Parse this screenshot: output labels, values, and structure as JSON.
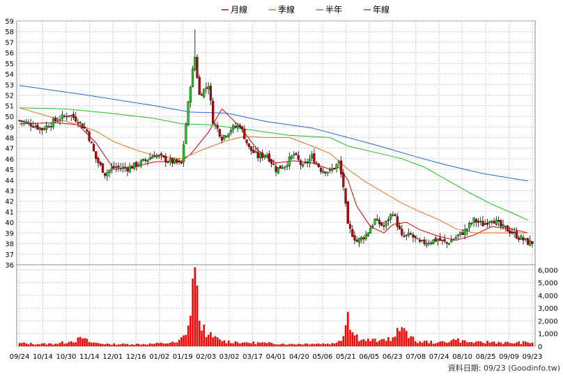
{
  "legend": [
    {
      "label": "月線",
      "color": "#cc0000"
    },
    {
      "label": "季線",
      "color": "#e07020"
    },
    {
      "label": "半年",
      "color": "#22bb22"
    },
    {
      "label": "年線",
      "color": "#2266cc"
    }
  ],
  "source_note": "資料日期: 09/23  (Goodinfo.tw)",
  "chart_data": [
    {
      "type": "candlestick",
      "title": "",
      "x_labels": [
        "09/24",
        "10/14",
        "10/30",
        "11/14",
        "12/01",
        "12/16",
        "01/02",
        "01/19",
        "02/03",
        "03/02",
        "03/17",
        "04/01",
        "04/20",
        "05/06",
        "05/21",
        "06/05",
        "06/23",
        "07/08",
        "07/24",
        "08/10",
        "08/25",
        "09/09",
        "09/23"
      ],
      "y_ticks": [
        36,
        37,
        38,
        39,
        40,
        41,
        42,
        43,
        44,
        45,
        46,
        47,
        48,
        49,
        50,
        51,
        52,
        53,
        54,
        55,
        56,
        57,
        58,
        59
      ],
      "ylim": [
        36,
        59
      ],
      "grid": true,
      "up_color": "#22cc22",
      "down_color": "#cc0000",
      "close_series": [
        {
          "i": 0,
          "v": 49.6
        },
        {
          "i": 6,
          "v": 49.2
        },
        {
          "i": 10,
          "v": 48.8
        },
        {
          "i": 16,
          "v": 49.6
        },
        {
          "i": 22,
          "v": 50.2
        },
        {
          "i": 26,
          "v": 49.6
        },
        {
          "i": 30,
          "v": 48.6
        },
        {
          "i": 34,
          "v": 46.0
        },
        {
          "i": 38,
          "v": 44.6
        },
        {
          "i": 42,
          "v": 45.2
        },
        {
          "i": 48,
          "v": 45.1
        },
        {
          "i": 54,
          "v": 45.6
        },
        {
          "i": 60,
          "v": 46.4
        },
        {
          "i": 66,
          "v": 45.8
        },
        {
          "i": 72,
          "v": 45.5
        },
        {
          "i": 76,
          "v": 53.0
        },
        {
          "i": 78,
          "v": 55.6
        },
        {
          "i": 80,
          "v": 52.0
        },
        {
          "i": 84,
          "v": 53.0
        },
        {
          "i": 86,
          "v": 49.6
        },
        {
          "i": 90,
          "v": 48.0
        },
        {
          "i": 94,
          "v": 48.8
        },
        {
          "i": 98,
          "v": 49.2
        },
        {
          "i": 102,
          "v": 47.0
        },
        {
          "i": 106,
          "v": 46.2
        },
        {
          "i": 110,
          "v": 46.4
        },
        {
          "i": 114,
          "v": 45.0
        },
        {
          "i": 118,
          "v": 45.4
        },
        {
          "i": 122,
          "v": 46.4
        },
        {
          "i": 126,
          "v": 45.2
        },
        {
          "i": 130,
          "v": 46.2
        },
        {
          "i": 134,
          "v": 45.0
        },
        {
          "i": 138,
          "v": 44.8
        },
        {
          "i": 142,
          "v": 45.6
        },
        {
          "i": 144,
          "v": 43.4
        },
        {
          "i": 146,
          "v": 39.6
        },
        {
          "i": 150,
          "v": 38.2
        },
        {
          "i": 154,
          "v": 38.8
        },
        {
          "i": 158,
          "v": 40.2
        },
        {
          "i": 162,
          "v": 39.6
        },
        {
          "i": 166,
          "v": 41.0
        },
        {
          "i": 170,
          "v": 38.6
        },
        {
          "i": 174,
          "v": 38.8
        },
        {
          "i": 178,
          "v": 38.0
        },
        {
          "i": 182,
          "v": 38.2
        },
        {
          "i": 186,
          "v": 38.4
        },
        {
          "i": 190,
          "v": 38.0
        },
        {
          "i": 194,
          "v": 38.6
        },
        {
          "i": 198,
          "v": 39.2
        },
        {
          "i": 202,
          "v": 40.2
        },
        {
          "i": 206,
          "v": 39.8
        },
        {
          "i": 210,
          "v": 40.4
        },
        {
          "i": 214,
          "v": 39.6
        },
        {
          "i": 218,
          "v": 39.2
        },
        {
          "i": 222,
          "v": 38.6
        },
        {
          "i": 226,
          "v": 38.1
        }
      ],
      "highlight_high": {
        "i": 78,
        "v": 58.2
      },
      "series": [
        {
          "name": "月線",
          "color": "#cc0000",
          "points": [
            [
              0,
              49.3
            ],
            [
              16,
              49.4
            ],
            [
              26,
              49.2
            ],
            [
              34,
              47.5
            ],
            [
              42,
              45.0
            ],
            [
              50,
              45.2
            ],
            [
              60,
              45.7
            ],
            [
              72,
              45.8
            ],
            [
              76,
              46.4
            ],
            [
              84,
              48.5
            ],
            [
              90,
              50.7
            ],
            [
              98,
              49.0
            ],
            [
              106,
              46.8
            ],
            [
              114,
              45.6
            ],
            [
              122,
              45.8
            ],
            [
              130,
              45.6
            ],
            [
              138,
              45.0
            ],
            [
              142,
              45.2
            ],
            [
              146,
              44.0
            ],
            [
              150,
              41.5
            ],
            [
              156,
              39.6
            ],
            [
              162,
              39.0
            ],
            [
              166,
              39.8
            ],
            [
              172,
              40.0
            ],
            [
              178,
              39.3
            ],
            [
              186,
              38.7
            ],
            [
              194,
              38.3
            ],
            [
              202,
              38.8
            ],
            [
              210,
              39.6
            ],
            [
              218,
              39.4
            ],
            [
              226,
              39.0
            ]
          ]
        },
        {
          "name": "季線",
          "color": "#e07020",
          "points": [
            [
              0,
              50.8
            ],
            [
              16,
              49.8
            ],
            [
              26,
              49.2
            ],
            [
              34,
              48.6
            ],
            [
              42,
              47.6
            ],
            [
              52,
              46.8
            ],
            [
              62,
              46.2
            ],
            [
              72,
              46.0
            ],
            [
              82,
              46.9
            ],
            [
              92,
              47.7
            ],
            [
              100,
              48.1
            ],
            [
              110,
              48.0
            ],
            [
              120,
              48.0
            ],
            [
              130,
              47.2
            ],
            [
              138,
              46.5
            ],
            [
              146,
              45.0
            ],
            [
              154,
              43.8
            ],
            [
              162,
              42.8
            ],
            [
              170,
              41.8
            ],
            [
              178,
              41.0
            ],
            [
              186,
              40.3
            ],
            [
              194,
              39.4
            ],
            [
              202,
              39.0
            ],
            [
              210,
              39.0
            ],
            [
              218,
              39.0
            ],
            [
              226,
              39.0
            ]
          ]
        },
        {
          "name": "半年",
          "color": "#22bb22",
          "points": [
            [
              0,
              50.8
            ],
            [
              20,
              50.7
            ],
            [
              40,
              50.3
            ],
            [
              60,
              49.8
            ],
            [
              72,
              49.3
            ],
            [
              84,
              49.2
            ],
            [
              100,
              48.8
            ],
            [
              120,
              48.2
            ],
            [
              138,
              48.0
            ],
            [
              146,
              47.2
            ],
            [
              160,
              46.5
            ],
            [
              170,
              46.0
            ],
            [
              180,
              45.2
            ],
            [
              190,
              44.0
            ],
            [
              200,
              42.8
            ],
            [
              210,
              41.7
            ],
            [
              220,
              40.8
            ],
            [
              226,
              40.2
            ]
          ]
        },
        {
          "name": "年線",
          "color": "#2266cc",
          "points": [
            [
              0,
              52.9
            ],
            [
              30,
              52.0
            ],
            [
              60,
              51.0
            ],
            [
              76,
              50.4
            ],
            [
              92,
              50.3
            ],
            [
              110,
              49.5
            ],
            [
              130,
              48.9
            ],
            [
              146,
              48.0
            ],
            [
              160,
              47.2
            ],
            [
              176,
              46.2
            ],
            [
              190,
              45.4
            ],
            [
              206,
              44.6
            ],
            [
              226,
              43.9
            ]
          ]
        }
      ]
    },
    {
      "type": "bar",
      "title": "",
      "y_ticks": [
        0,
        1000,
        2000,
        3000,
        4000,
        5000,
        6000
      ],
      "y_tick_labels": [
        "0",
        "1,000",
        "2,000",
        "3,000",
        "4,000",
        "5,000",
        "6,000"
      ],
      "ylim": [
        0,
        6400
      ],
      "bar_color": "#ff0000",
      "volume_series": [
        {
          "i": 0,
          "v": 250
        },
        {
          "i": 8,
          "v": 180
        },
        {
          "i": 16,
          "v": 200
        },
        {
          "i": 22,
          "v": 350
        },
        {
          "i": 28,
          "v": 600
        },
        {
          "i": 32,
          "v": 280
        },
        {
          "i": 40,
          "v": 180
        },
        {
          "i": 50,
          "v": 160
        },
        {
          "i": 60,
          "v": 200
        },
        {
          "i": 70,
          "v": 300
        },
        {
          "i": 74,
          "v": 900
        },
        {
          "i": 76,
          "v": 2400
        },
        {
          "i": 78,
          "v": 6200
        },
        {
          "i": 80,
          "v": 2000
        },
        {
          "i": 84,
          "v": 900
        },
        {
          "i": 90,
          "v": 400
        },
        {
          "i": 100,
          "v": 300
        },
        {
          "i": 110,
          "v": 250
        },
        {
          "i": 120,
          "v": 180
        },
        {
          "i": 130,
          "v": 200
        },
        {
          "i": 140,
          "v": 220
        },
        {
          "i": 144,
          "v": 800
        },
        {
          "i": 146,
          "v": 2700
        },
        {
          "i": 148,
          "v": 1100
        },
        {
          "i": 152,
          "v": 500
        },
        {
          "i": 160,
          "v": 450
        },
        {
          "i": 166,
          "v": 700
        },
        {
          "i": 170,
          "v": 1500
        },
        {
          "i": 172,
          "v": 1200
        },
        {
          "i": 176,
          "v": 400
        },
        {
          "i": 186,
          "v": 300
        },
        {
          "i": 194,
          "v": 500
        },
        {
          "i": 202,
          "v": 260
        },
        {
          "i": 210,
          "v": 350
        },
        {
          "i": 218,
          "v": 260
        },
        {
          "i": 226,
          "v": 300
        }
      ]
    }
  ]
}
